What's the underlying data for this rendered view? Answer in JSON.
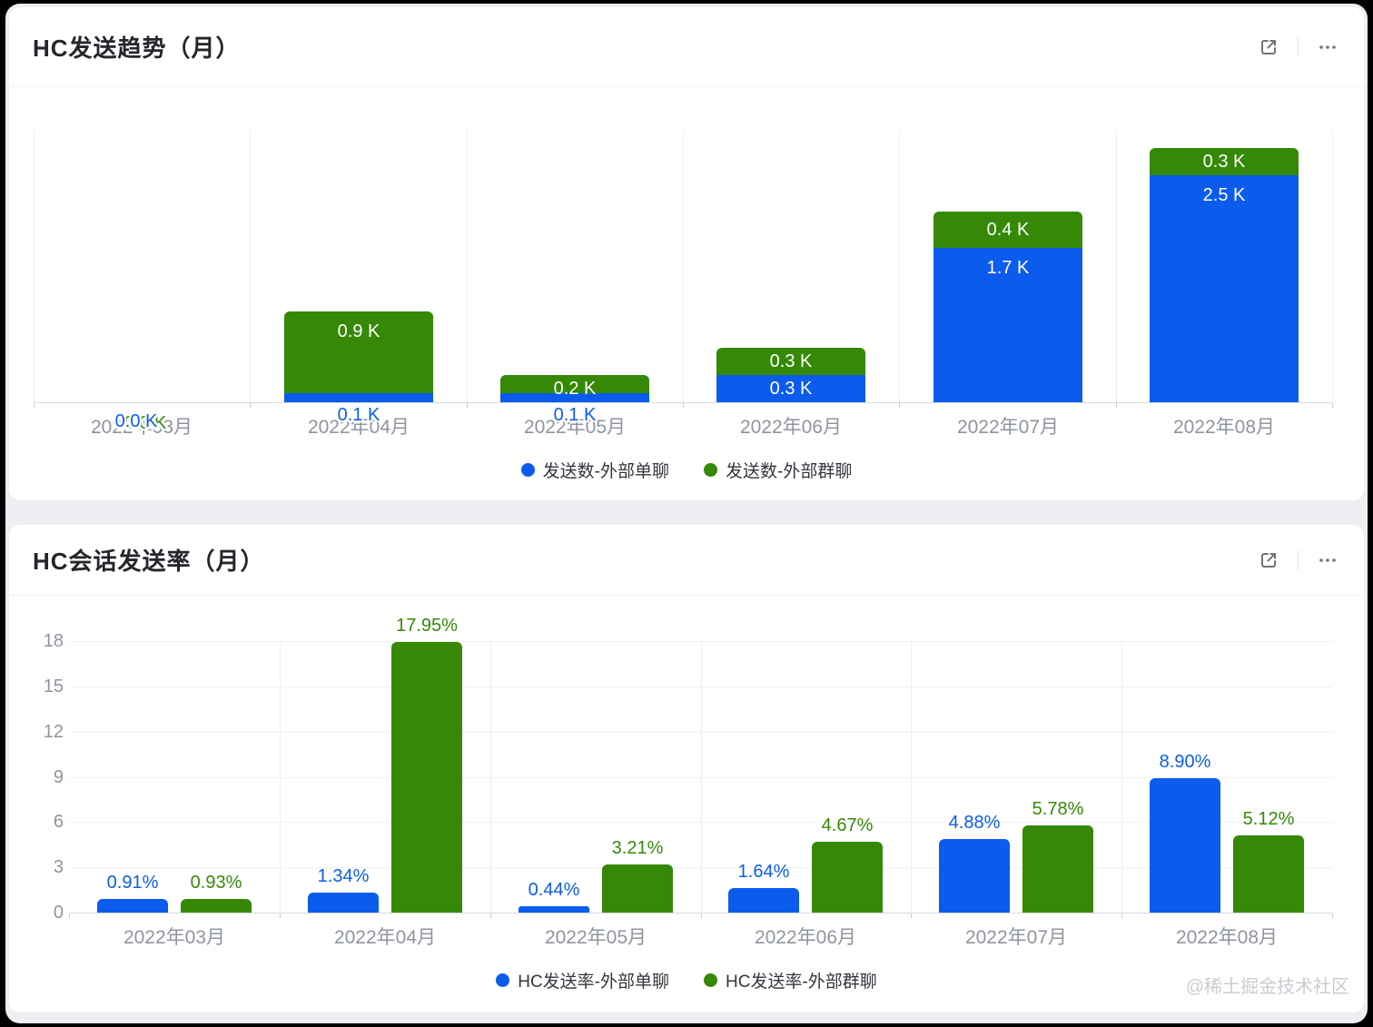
{
  "page": {
    "watermark": "@稀土掘金技术社区"
  },
  "colors": {
    "single_chat_blue": "#0b5ced",
    "group_chat_green": "#358906",
    "axis_label_gray": "#8f959e"
  },
  "cards": [
    {
      "title": "HC发送趋势（月）",
      "icons": [
        "open-in-new-icon",
        "more-ellipsis-icon"
      ]
    },
    {
      "title": "HC会话发送率（月）",
      "icons": [
        "open-in-new-icon",
        "more-ellipsis-icon"
      ]
    }
  ],
  "chart_data": [
    {
      "type": "bar",
      "variant": "stacked",
      "title": "HC发送趋势（月）",
      "unit": "K",
      "categories": [
        "2022年03月",
        "2022年04月",
        "2022年05月",
        "2022年06月",
        "2022年07月",
        "2022年08月"
      ],
      "series": [
        {
          "name": "发送数-外部单聊",
          "color": "#0b5ced",
          "values": [
            0.0,
            0.1,
            0.1,
            0.3,
            1.7,
            2.5
          ],
          "labels": [
            "0.0 K",
            "0.1 K",
            "0.1 K",
            "0.3 K",
            "1.7 K",
            "2.5 K"
          ]
        },
        {
          "name": "发送数-外部群聊",
          "color": "#358906",
          "values": [
            0.0,
            0.9,
            0.2,
            0.3,
            0.4,
            0.3
          ],
          "labels": [
            "0.0 K",
            "0.9 K",
            "0.2 K",
            "0.3 K",
            "0.4 K",
            "0.3 K"
          ]
        }
      ],
      "ylim": [
        0,
        3.0
      ],
      "grid": "vertical-split-lines",
      "legend_position": "bottom"
    },
    {
      "type": "bar",
      "variant": "grouped",
      "title": "HC会话发送率（月）",
      "unit": "%",
      "categories": [
        "2022年03月",
        "2022年04月",
        "2022年05月",
        "2022年06月",
        "2022年07月",
        "2022年08月"
      ],
      "yticks": [
        0,
        3,
        6,
        9,
        12,
        15,
        18
      ],
      "series": [
        {
          "name": "HC发送率-外部单聊",
          "color": "#0b5ced",
          "values": [
            0.91,
            1.34,
            0.44,
            1.64,
            4.88,
            8.9
          ],
          "labels": [
            "0.91%",
            "1.34%",
            "0.44%",
            "1.64%",
            "4.88%",
            "8.90%"
          ]
        },
        {
          "name": "HC发送率-外部群聊",
          "color": "#358906",
          "values": [
            0.93,
            17.95,
            3.21,
            4.67,
            5.78,
            5.12
          ],
          "labels": [
            "0.93%",
            "17.95%",
            "3.21%",
            "4.67%",
            "5.78%",
            "5.12%"
          ]
        }
      ],
      "ylim": [
        0,
        18
      ],
      "grid": "horizontal+vertical-split-lines",
      "legend_position": "bottom"
    }
  ]
}
